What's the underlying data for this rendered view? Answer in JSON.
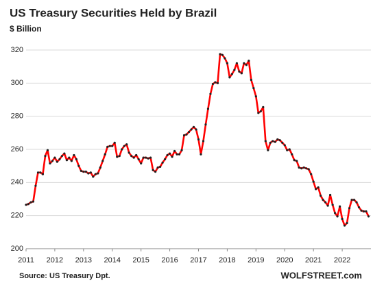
{
  "chart_data": {
    "type": "line",
    "title": "US Treasury Securities Held by Brazil",
    "subtitle": "$ Billion",
    "source": "Source: US Treasury  Dpt.",
    "brand": "WOLFSTREET.com",
    "xlim": [
      2011,
      2023
    ],
    "xticks": [
      2011,
      2012,
      2013,
      2014,
      2015,
      2016,
      2017,
      2018,
      2019,
      2020,
      2021,
      2022
    ],
    "ylim": [
      200,
      320
    ],
    "yticks": [
      200,
      220,
      240,
      260,
      280,
      300,
      320
    ],
    "grid": true,
    "series": [
      {
        "name": "US Treasury Securities Held by Brazil",
        "color": "#ff0000",
        "marker_color": "#222222",
        "x": [
          2011.0,
          2011.083,
          2011.167,
          2011.25,
          2011.333,
          2011.417,
          2011.5,
          2011.583,
          2011.667,
          2011.75,
          2011.833,
          2011.917,
          2012.0,
          2012.083,
          2012.167,
          2012.25,
          2012.333,
          2012.417,
          2012.5,
          2012.583,
          2012.667,
          2012.75,
          2012.833,
          2012.917,
          2013.0,
          2013.083,
          2013.167,
          2013.25,
          2013.333,
          2013.417,
          2013.5,
          2013.583,
          2013.667,
          2013.75,
          2013.833,
          2013.917,
          2014.0,
          2014.083,
          2014.167,
          2014.25,
          2014.333,
          2014.417,
          2014.5,
          2014.583,
          2014.667,
          2014.75,
          2014.833,
          2014.917,
          2015.0,
          2015.083,
          2015.167,
          2015.25,
          2015.333,
          2015.417,
          2015.5,
          2015.583,
          2015.667,
          2015.75,
          2015.833,
          2015.917,
          2016.0,
          2016.083,
          2016.167,
          2016.25,
          2016.333,
          2016.417,
          2016.5,
          2016.583,
          2016.667,
          2016.75,
          2016.833,
          2016.917,
          2017.0,
          2017.083,
          2017.167,
          2017.25,
          2017.333,
          2017.417,
          2017.5,
          2017.583,
          2017.667,
          2017.75,
          2017.833,
          2017.917,
          2018.0,
          2018.083,
          2018.167,
          2018.25,
          2018.333,
          2018.417,
          2018.5,
          2018.583,
          2018.667,
          2018.75,
          2018.833,
          2018.917,
          2019.0,
          2019.083,
          2019.167,
          2019.25,
          2019.333,
          2019.417,
          2019.5,
          2019.583,
          2019.667,
          2019.75,
          2019.833,
          2019.917,
          2020.0,
          2020.083,
          2020.167,
          2020.25,
          2020.333,
          2020.417,
          2020.5,
          2020.583,
          2020.667,
          2020.75,
          2020.833,
          2020.917,
          2021.0,
          2021.083,
          2021.167,
          2021.25,
          2021.333,
          2021.417,
          2021.5,
          2021.583,
          2021.667,
          2021.75,
          2021.833,
          2021.917,
          2022.0,
          2022.083,
          2022.167,
          2022.25,
          2022.333,
          2022.417,
          2022.5,
          2022.583,
          2022.667,
          2022.75,
          2022.833,
          2022.917
        ],
        "values": [
          226.5,
          227,
          228,
          228.5,
          238,
          246,
          246,
          245,
          256,
          259.5,
          251.5,
          253,
          255,
          252.5,
          254,
          256,
          257.5,
          253.5,
          255,
          253,
          256.5,
          254,
          250,
          247,
          246.5,
          246.5,
          245.5,
          246,
          243.5,
          245,
          245.5,
          249,
          253,
          257,
          261.5,
          262,
          262,
          264,
          255.5,
          256,
          260,
          262,
          263,
          258,
          256,
          255,
          256.5,
          254,
          251.5,
          255,
          255,
          254.5,
          255,
          247.5,
          246.5,
          249,
          249.5,
          252,
          254,
          256.5,
          257.5,
          255.5,
          259,
          257,
          257,
          259.5,
          268.5,
          269,
          270.5,
          272,
          273.5,
          272,
          266,
          257,
          265,
          275,
          284.5,
          293.5,
          299.5,
          300.5,
          300,
          317.5,
          317,
          315,
          312,
          303.5,
          305.5,
          308,
          312,
          307,
          306,
          312,
          311,
          313.5,
          302,
          297,
          292,
          282,
          283,
          285.5,
          265,
          259.5,
          264,
          265,
          264.5,
          266,
          265.5,
          264,
          262.5,
          259.5,
          260,
          257,
          253.5,
          253,
          249,
          248.5,
          249,
          248.5,
          248,
          245,
          240.5,
          236,
          237,
          232,
          229.5,
          228,
          226,
          232.5,
          226.5,
          221.5,
          219.5,
          225.5,
          218,
          214,
          215.5,
          224.5,
          229.5,
          229.5,
          228,
          225,
          223,
          222.5,
          222.5,
          219.5
        ]
      }
    ]
  }
}
